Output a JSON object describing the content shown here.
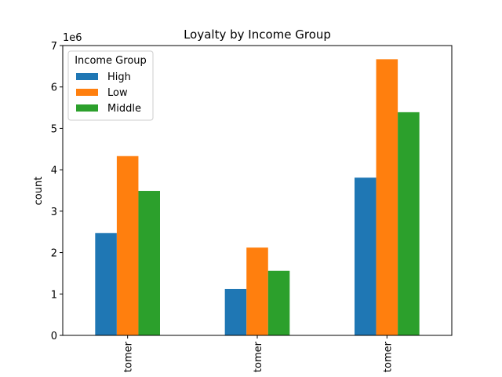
{
  "chart_data": {
    "type": "bar",
    "title": "Loyalty by Income Group",
    "xlabel": "",
    "ylabel": "count",
    "y_offset_label": "1e6",
    "y_scale": 1000000,
    "ylim": [
      0,
      7000000
    ],
    "yticks": [
      0,
      1000000,
      2000000,
      3000000,
      4000000,
      5000000,
      6000000,
      7000000
    ],
    "ytick_labels": [
      "0",
      "1",
      "2",
      "3",
      "4",
      "5",
      "6",
      "7"
    ],
    "categories": [
      "tomer",
      "tomer",
      "tomer"
    ],
    "grid": false,
    "legend": {
      "title": "Income Group",
      "placement": "upper-left"
    },
    "series": [
      {
        "name": "High",
        "color": "#1f77b4",
        "values": [
          2470000,
          1120000,
          3810000
        ]
      },
      {
        "name": "Low",
        "color": "#ff7f0e",
        "values": [
          4330000,
          2120000,
          6670000
        ]
      },
      {
        "name": "Middle",
        "color": "#2ca02c",
        "values": [
          3490000,
          1560000,
          5390000
        ]
      }
    ]
  }
}
